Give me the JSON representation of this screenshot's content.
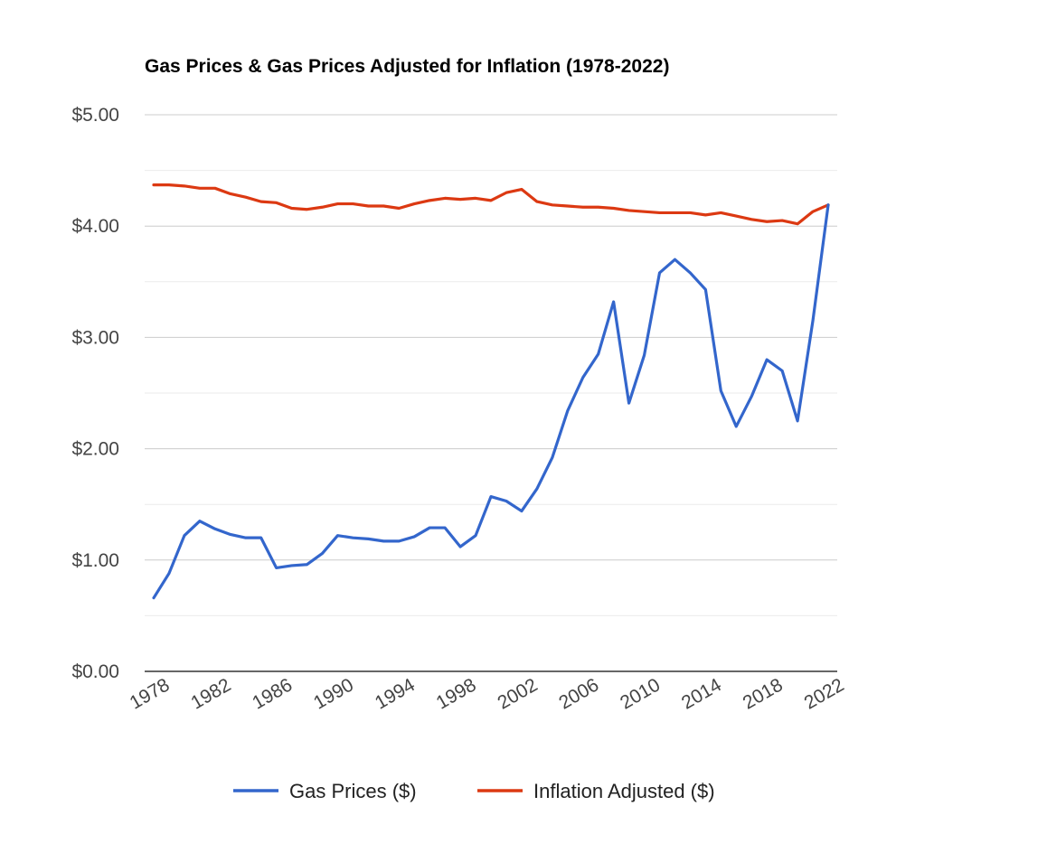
{
  "chart_data": {
    "type": "line",
    "title": "Gas Prices & Gas Prices Adjusted for Inflation (1978-2022)",
    "xlabel": "",
    "ylabel": "",
    "ylim": [
      0,
      5
    ],
    "y_ticks": [
      "$0.00",
      "$1.00",
      "$2.00",
      "$3.00",
      "$4.00",
      "$5.00"
    ],
    "x_ticks": [
      "1978",
      "1982",
      "1986",
      "1990",
      "1994",
      "1998",
      "2002",
      "2006",
      "2010",
      "2014",
      "2018",
      "2022"
    ],
    "grid": true,
    "legend_position": "bottom",
    "x": [
      1978,
      1979,
      1980,
      1981,
      1982,
      1983,
      1984,
      1985,
      1986,
      1987,
      1988,
      1989,
      1990,
      1991,
      1992,
      1993,
      1994,
      1995,
      1996,
      1997,
      1998,
      1999,
      2000,
      2001,
      2002,
      2003,
      2004,
      2005,
      2006,
      2007,
      2008,
      2009,
      2010,
      2011,
      2012,
      2013,
      2014,
      2015,
      2016,
      2017,
      2018,
      2019,
      2020,
      2021,
      2022
    ],
    "series": [
      {
        "name": "Gas Prices ($)",
        "color": "#3366cc",
        "values": [
          0.66,
          0.88,
          1.22,
          1.35,
          1.28,
          1.23,
          1.2,
          1.2,
          0.93,
          0.95,
          0.96,
          1.06,
          1.22,
          1.2,
          1.19,
          1.17,
          1.17,
          1.21,
          1.29,
          1.29,
          1.12,
          1.22,
          1.57,
          1.53,
          1.44,
          1.64,
          1.92,
          2.34,
          2.64,
          2.85,
          3.32,
          2.41,
          2.84,
          3.58,
          3.7,
          3.58,
          3.43,
          2.52,
          2.2,
          2.47,
          2.8,
          2.7,
          2.25,
          3.15,
          4.19
        ]
      },
      {
        "name": "Inflation Adjusted ($)",
        "color": "#dc3912",
        "values": [
          4.37,
          4.37,
          4.36,
          4.34,
          4.34,
          4.29,
          4.26,
          4.22,
          4.21,
          4.16,
          4.15,
          4.17,
          4.2,
          4.2,
          4.18,
          4.18,
          4.16,
          4.2,
          4.23,
          4.25,
          4.24,
          4.25,
          4.23,
          4.3,
          4.33,
          4.22,
          4.19,
          4.18,
          4.17,
          4.17,
          4.16,
          4.14,
          4.13,
          4.12,
          4.12,
          4.12,
          4.1,
          4.12,
          4.09,
          4.06,
          4.04,
          4.05,
          4.02,
          4.13,
          4.19
        ]
      }
    ]
  }
}
